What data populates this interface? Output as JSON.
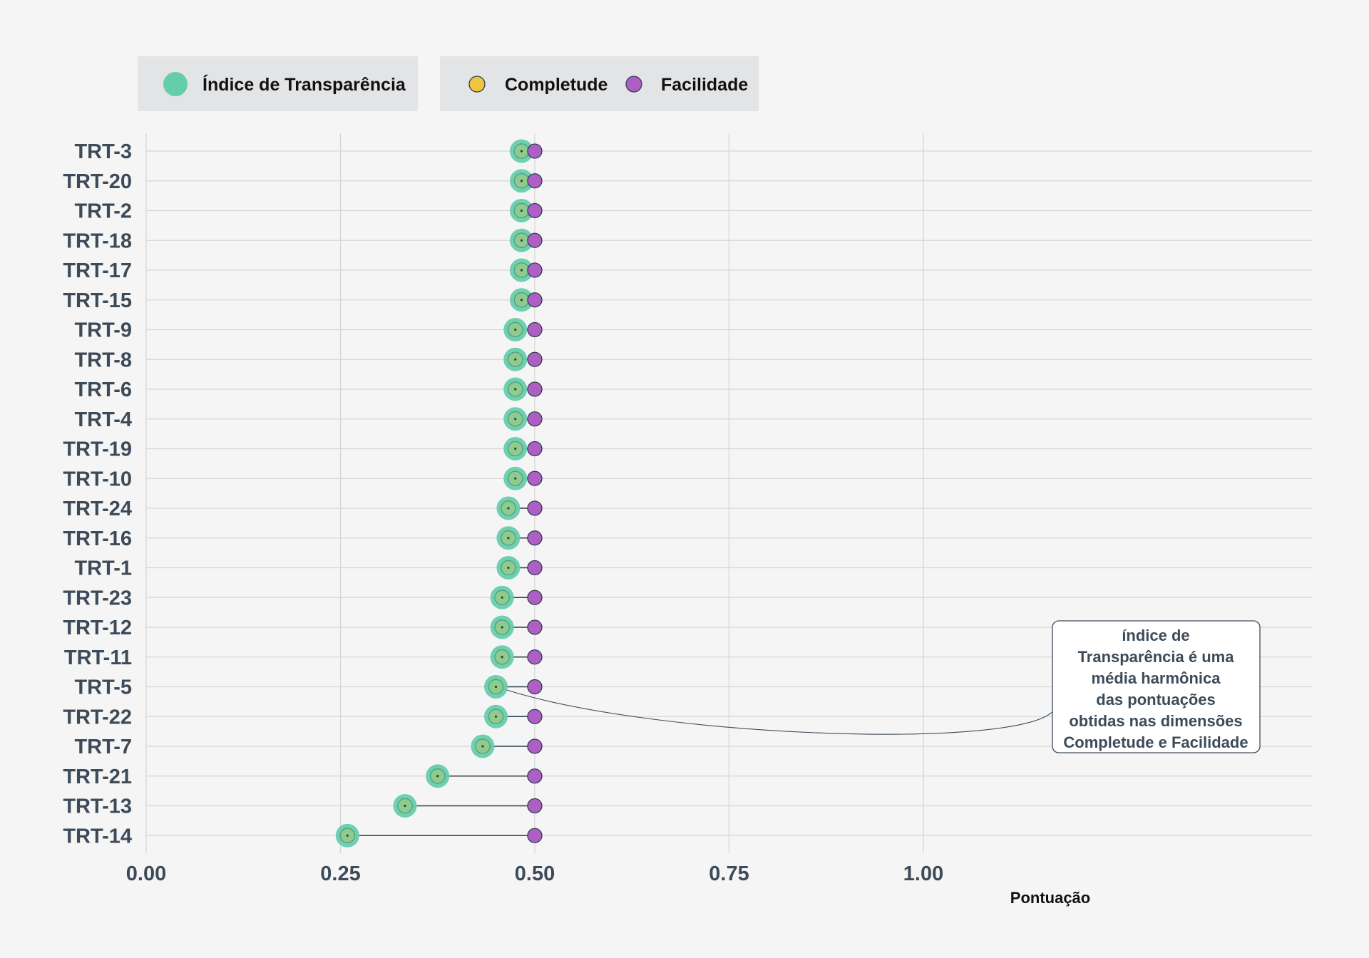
{
  "chart_data": {
    "type": "scatter",
    "xlabel": "Pontuação",
    "ylabel": "",
    "xlim": [
      0,
      1.5
    ],
    "x_ticks": [
      {
        "value": 0,
        "label": "0.00"
      },
      {
        "value": 0.25,
        "label": "0.25"
      },
      {
        "value": 0.5,
        "label": "0.50"
      },
      {
        "value": 0.75,
        "label": "0.75"
      },
      {
        "value": 1.0,
        "label": "1.00"
      }
    ],
    "grid": true,
    "legend": {
      "placement": "top-left",
      "groups": [
        {
          "entries": [
            {
              "name": "Índice de Transparência",
              "color": "#66cdaa"
            }
          ]
        },
        {
          "entries": [
            {
              "name": "Completude",
              "color": "#f2c440"
            },
            {
              "name": "Facilidade",
              "color": "#ad5fc4"
            }
          ]
        }
      ]
    },
    "colors": {
      "indice": "#66cdaa",
      "completude": "#f2c440",
      "facilidade": "#ad5fc4",
      "segment": "#2f3f4e"
    },
    "categories": [
      "TRT-3",
      "TRT-20",
      "TRT-2",
      "TRT-18",
      "TRT-17",
      "TRT-15",
      "TRT-9",
      "TRT-8",
      "TRT-6",
      "TRT-4",
      "TRT-19",
      "TRT-10",
      "TRT-24",
      "TRT-16",
      "TRT-1",
      "TRT-23",
      "TRT-12",
      "TRT-11",
      "TRT-5",
      "TRT-22",
      "TRT-7",
      "TRT-21",
      "TRT-13",
      "TRT-14"
    ],
    "series": [
      {
        "name": "Índice de Transparência",
        "values": [
          0.483,
          0.483,
          0.483,
          0.483,
          0.483,
          0.483,
          0.475,
          0.475,
          0.475,
          0.475,
          0.475,
          0.475,
          0.466,
          0.466,
          0.466,
          0.458,
          0.458,
          0.458,
          0.45,
          0.45,
          0.433,
          0.375,
          0.333,
          0.259
        ]
      },
      {
        "name": "Completude",
        "values": [
          0.483,
          0.483,
          0.483,
          0.483,
          0.483,
          0.483,
          0.475,
          0.475,
          0.475,
          0.475,
          0.475,
          0.475,
          0.466,
          0.466,
          0.466,
          0.458,
          0.458,
          0.458,
          0.45,
          0.45,
          0.433,
          0.375,
          0.333,
          0.259
        ]
      },
      {
        "name": "Facilidade",
        "values": [
          0.5,
          0.5,
          0.5,
          0.5,
          0.5,
          0.5,
          0.5,
          0.5,
          0.5,
          0.5,
          0.5,
          0.5,
          0.5,
          0.5,
          0.5,
          0.5,
          0.5,
          0.5,
          0.5,
          0.5,
          0.5,
          0.5,
          0.5,
          0.5
        ]
      }
    ],
    "annotation": {
      "lines": [
        "índice de",
        "Transparência é uma",
        "média harmônica",
        "das pontuações",
        "obtidas nas dimensões",
        "Completude e Facilidade"
      ],
      "target_category": "TRT-5",
      "target_value": 0.45
    }
  }
}
